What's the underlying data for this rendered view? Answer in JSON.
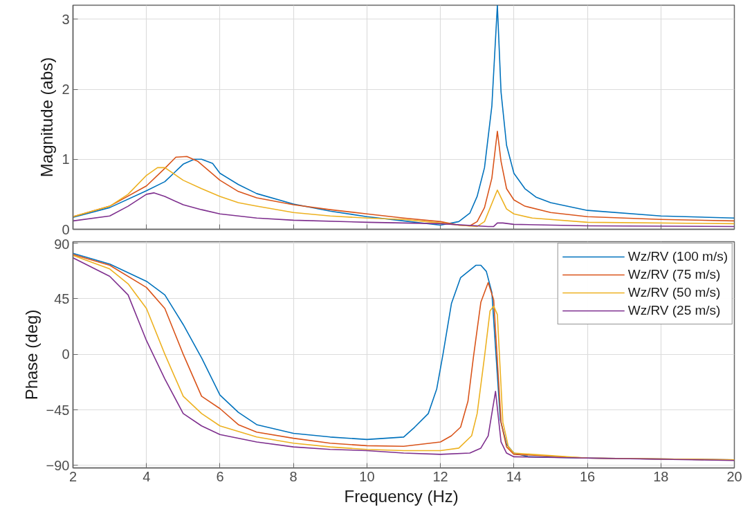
{
  "chart_data": [
    {
      "type": "line",
      "ylabel": "Magnitude (abs)",
      "xlim": [
        2,
        20
      ],
      "xticks": [
        2,
        4,
        6,
        8,
        10,
        12,
        14,
        16,
        18,
        20
      ],
      "ylim": [
        0,
        3.2
      ],
      "yticks": [
        0,
        1,
        2,
        3
      ],
      "grid": true,
      "tick_labels": "y",
      "series": [
        {
          "color": "#0072bd",
          "x": [
            2,
            3,
            4,
            4.5,
            5,
            5.3,
            5.5,
            5.8,
            6,
            6.5,
            7,
            8,
            9,
            10,
            11,
            12,
            12.5,
            12.8,
            13,
            13.2,
            13.4,
            13.55,
            13.65,
            13.8,
            14,
            14.3,
            14.6,
            15,
            16,
            18,
            20
          ],
          "values": [
            0.17,
            0.31,
            0.55,
            0.68,
            0.93,
            1.0,
            1.0,
            0.94,
            0.8,
            0.64,
            0.51,
            0.36,
            0.26,
            0.18,
            0.12,
            0.06,
            0.11,
            0.23,
            0.47,
            0.88,
            1.76,
            3.2,
            1.96,
            1.2,
            0.8,
            0.58,
            0.46,
            0.38,
            0.27,
            0.19,
            0.16
          ]
        },
        {
          "color": "#d95319",
          "x": [
            2,
            3,
            4,
            4.5,
            4.8,
            5.1,
            5.4,
            6,
            6.5,
            7,
            8,
            9,
            10,
            11,
            12,
            12.5,
            12.8,
            13,
            13.2,
            13.4,
            13.55,
            13.65,
            13.8,
            14,
            14.3,
            15,
            16,
            18,
            20
          ],
          "values": [
            0.18,
            0.33,
            0.62,
            0.87,
            1.03,
            1.04,
            0.97,
            0.7,
            0.54,
            0.45,
            0.35,
            0.28,
            0.22,
            0.16,
            0.11,
            0.06,
            0.05,
            0.11,
            0.31,
            0.73,
            1.4,
            0.97,
            0.58,
            0.42,
            0.33,
            0.24,
            0.18,
            0.14,
            0.12
          ]
        },
        {
          "color": "#edb120",
          "x": [
            2,
            3,
            3.5,
            4,
            4.3,
            4.5,
            5,
            5.5,
            6,
            6.5,
            7,
            8,
            9,
            10,
            11,
            12,
            12.5,
            13,
            13.2,
            13.55,
            13.8,
            14,
            14.5,
            16,
            20
          ],
          "values": [
            0.18,
            0.33,
            0.5,
            0.77,
            0.88,
            0.88,
            0.7,
            0.58,
            0.47,
            0.38,
            0.33,
            0.24,
            0.19,
            0.16,
            0.14,
            0.09,
            0.06,
            0.04,
            0.11,
            0.56,
            0.29,
            0.22,
            0.16,
            0.1,
            0.08
          ]
        },
        {
          "color": "#7e2f8e",
          "x": [
            2,
            3,
            3.5,
            4,
            4.2,
            4.5,
            5,
            5.5,
            6,
            7,
            8,
            10,
            12,
            13.3,
            13.45,
            13.55,
            13.7,
            14,
            16,
            20
          ],
          "values": [
            0.12,
            0.19,
            0.33,
            0.5,
            0.52,
            0.47,
            0.35,
            0.28,
            0.22,
            0.16,
            0.13,
            0.1,
            0.08,
            0.04,
            0.04,
            0.09,
            0.09,
            0.07,
            0.05,
            0.04
          ]
        }
      ]
    },
    {
      "type": "line",
      "xlabel": "Frequency  (Hz)",
      "ylabel": "Phase (deg)",
      "xlim": [
        2,
        20
      ],
      "xticks": [
        2,
        4,
        6,
        8,
        10,
        12,
        14,
        16,
        18,
        20
      ],
      "ylim": [
        -92,
        91
      ],
      "yticks": [
        -90,
        -45,
        0,
        45,
        90
      ],
      "grid": true,
      "legend": "top right",
      "series": [
        {
          "name": "Wz/RV (100 m/s)",
          "color": "#0072bd",
          "x": [
            2,
            3,
            4,
            4.5,
            5,
            5.5,
            6,
            6.5,
            7,
            8,
            9,
            10,
            11,
            11.3,
            11.67,
            11.9,
            12.07,
            12.3,
            12.55,
            12.97,
            13.1,
            13.25,
            13.4,
            13.63,
            13.8,
            14,
            14.4,
            16,
            20
          ],
          "values": [
            81.6,
            73,
            59,
            48,
            24,
            -3,
            -33,
            -47,
            -57,
            -64,
            -67,
            -69,
            -67,
            -59,
            -48,
            -28,
            0,
            41,
            62,
            72,
            72,
            67,
            50,
            -53,
            -73,
            -80,
            -83,
            -84,
            -85.5
          ]
        },
        {
          "name": "Wz/RV (75 m/s)",
          "color": "#d95319",
          "x": [
            2,
            3,
            4,
            4.5,
            5,
            5.5,
            6,
            6.5,
            7,
            8,
            9,
            10,
            11,
            12,
            12.3,
            12.55,
            12.75,
            12.9,
            13.1,
            13.3,
            13.45,
            13.65,
            13.8,
            14,
            16,
            20
          ],
          "values": [
            80.6,
            72,
            54,
            37,
            0,
            -34,
            -44,
            -57,
            -63,
            -68,
            -72,
            -74,
            -74.5,
            -71,
            -66,
            -59,
            -38,
            -2,
            42,
            58,
            44,
            -55,
            -75,
            -81,
            -84,
            -85.5
          ]
        },
        {
          "name": "Wz/RV (50 m/s)",
          "color": "#edb120",
          "x": [
            2,
            3,
            3.5,
            4,
            4.5,
            5,
            5.5,
            6,
            7,
            8,
            9,
            10,
            11,
            12,
            12.5,
            12.85,
            13,
            13.2,
            13.35,
            13.45,
            13.55,
            13.7,
            13.85,
            14,
            16,
            20
          ],
          "values": [
            80,
            69,
            57,
            37,
            0,
            -34,
            -48,
            -58,
            -67,
            -72,
            -75,
            -77,
            -78,
            -78,
            -76,
            -66,
            -48,
            -2,
            35,
            39,
            32,
            -55,
            -75,
            -80,
            -84,
            -85.5
          ]
        },
        {
          "name": "Wz/RV (25 m/s)",
          "color": "#7e2f8e",
          "x": [
            2,
            3,
            3.5,
            4,
            4.5,
            5,
            5.5,
            6,
            7,
            8,
            9,
            10,
            11,
            12,
            12.8,
            13.1,
            13.3,
            13.5,
            13.65,
            13.8,
            14,
            16,
            20
          ],
          "values": [
            78,
            63,
            48,
            11,
            -20,
            -48,
            -58,
            -65,
            -71,
            -75,
            -77,
            -78,
            -80,
            -81,
            -80,
            -76,
            -66,
            -30,
            -71,
            -80,
            -83,
            -84,
            -86
          ]
        }
      ]
    }
  ]
}
